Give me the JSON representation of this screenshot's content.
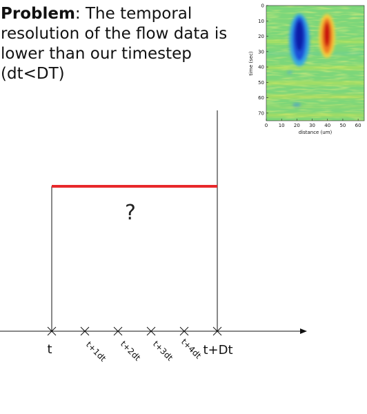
{
  "problem": {
    "bold": "Problem",
    "text": ": The temporal resolution of the flow data is lower than our timestep (dt<DT)"
  },
  "heatmap": {
    "ylabel": "time (sec)",
    "xlabel": "distance (um)",
    "yticks": [
      "0",
      "10",
      "20",
      "30",
      "40",
      "50",
      "60",
      "70"
    ],
    "xticks": [
      "0",
      "10",
      "20",
      "30",
      "40",
      "50",
      "60"
    ],
    "xlim": [
      0,
      64
    ],
    "ylim": [
      0,
      75
    ],
    "colormap": "jet"
  },
  "diagram": {
    "question_mark": "?",
    "interval_color": "#e8282b",
    "labels": {
      "t": "t",
      "t1": "t+1dt",
      "t2": "t+2dt",
      "t3": "t+3dt",
      "t4": "t+4dt",
      "tD": "t+Dt"
    }
  }
}
